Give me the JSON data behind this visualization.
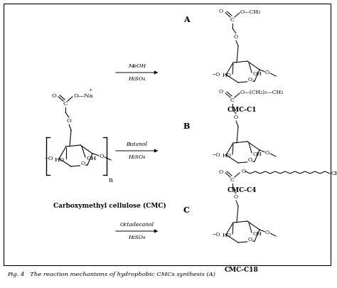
{
  "caption": "Fig. 4   The reaction mechanisms of hydrophobic CMCs synthesis (A)",
  "background_color": "#ffffff",
  "border_color": "#000000",
  "fig_width": 4.74,
  "fig_height": 4.05,
  "label_A": "A",
  "label_B": "B",
  "label_C": "C",
  "reagent_A_top": "MeOH",
  "reagent_A_bot": "H₂SO₄",
  "reagent_B_top": "Butanol",
  "reagent_B_bot": "H₂SO₄",
  "reagent_C_top": "Octadecanol",
  "reagent_C_bot": "H₂SO₄",
  "product_labels": [
    "CMC-C1",
    "CMC-C4",
    "CMC-C18"
  ],
  "cmc_label": "Carboxymethyl cellulose (CMC)",
  "text_color": "#000000",
  "line_color": "#000000"
}
